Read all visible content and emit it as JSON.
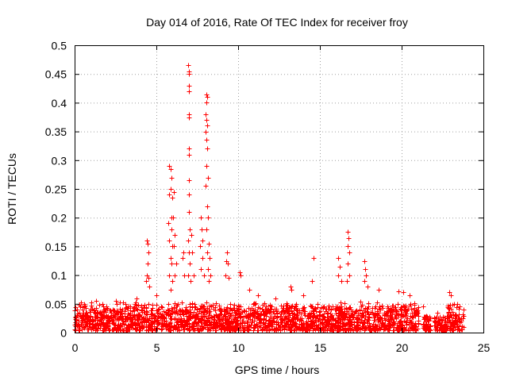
{
  "chart_data": {
    "type": "scatter",
    "title": "Day 014 of 2016, Rate Of TEC Index for receiver froy",
    "xlabel": "GPS time / hours",
    "ylabel": "ROTI / TECUs",
    "xlim": [
      0,
      25
    ],
    "ylim": [
      0,
      0.5
    ],
    "xticks": [
      "0",
      "5",
      "10",
      "15",
      "20",
      "25"
    ],
    "yticks": [
      "0",
      "0.05",
      "0.1",
      "0.15",
      "0.2",
      "0.25",
      "0.3",
      "0.35",
      "0.4",
      "0.45",
      "0.5"
    ],
    "grid": true,
    "marker": "+",
    "color": "#ff0000",
    "series": [
      {
        "points": [
          [
            0.3,
            0.048
          ],
          [
            0.6,
            0.05
          ],
          [
            1.0,
            0.052
          ],
          [
            1.3,
            0.055
          ],
          [
            1.7,
            0.05
          ],
          [
            2.5,
            0.055
          ],
          [
            3.1,
            0.05
          ],
          [
            3.8,
            0.06
          ],
          [
            4.4,
            0.16
          ],
          [
            4.45,
            0.155
          ],
          [
            4.5,
            0.14
          ],
          [
            4.45,
            0.12
          ],
          [
            4.4,
            0.1
          ],
          [
            4.5,
            0.095
          ],
          [
            4.35,
            0.09
          ],
          [
            4.55,
            0.08
          ],
          [
            5.0,
            0.065
          ],
          [
            5.8,
            0.29
          ],
          [
            5.85,
            0.285
          ],
          [
            5.9,
            0.27
          ],
          [
            5.85,
            0.25
          ],
          [
            5.8,
            0.24
          ],
          [
            5.95,
            0.235
          ],
          [
            5.9,
            0.2
          ],
          [
            5.75,
            0.19
          ],
          [
            5.9,
            0.18
          ],
          [
            5.8,
            0.16
          ],
          [
            5.95,
            0.15
          ],
          [
            5.85,
            0.13
          ],
          [
            5.9,
            0.12
          ],
          [
            5.8,
            0.1
          ],
          [
            5.95,
            0.09
          ],
          [
            5.85,
            0.075
          ],
          [
            6.05,
            0.245
          ],
          [
            6.0,
            0.2
          ],
          [
            6.1,
            0.17
          ],
          [
            6.05,
            0.15
          ],
          [
            6.2,
            0.12
          ],
          [
            6.1,
            0.1
          ],
          [
            6.6,
            0.13
          ],
          [
            6.65,
            0.14
          ],
          [
            6.7,
            0.1
          ],
          [
            6.95,
            0.465
          ],
          [
            7.0,
            0.455
          ],
          [
            6.98,
            0.45
          ],
          [
            7.0,
            0.43
          ],
          [
            6.97,
            0.42
          ],
          [
            7.0,
            0.38
          ],
          [
            6.98,
            0.375
          ],
          [
            6.97,
            0.32
          ],
          [
            7.0,
            0.31
          ],
          [
            7.0,
            0.265
          ],
          [
            6.98,
            0.24
          ],
          [
            6.97,
            0.21
          ],
          [
            7.02,
            0.18
          ],
          [
            6.95,
            0.16
          ],
          [
            7.0,
            0.14
          ],
          [
            7.05,
            0.12
          ],
          [
            6.95,
            0.1
          ],
          [
            7.1,
            0.09
          ],
          [
            7.2,
            0.14
          ],
          [
            7.15,
            0.17
          ],
          [
            7.3,
            0.1
          ],
          [
            7.7,
            0.2
          ],
          [
            7.75,
            0.18
          ],
          [
            7.8,
            0.16
          ],
          [
            7.65,
            0.15
          ],
          [
            7.8,
            0.13
          ],
          [
            7.7,
            0.11
          ],
          [
            7.9,
            0.1
          ],
          [
            8.05,
            0.415
          ],
          [
            8.1,
            0.41
          ],
          [
            8.05,
            0.4
          ],
          [
            8.0,
            0.38
          ],
          [
            8.05,
            0.37
          ],
          [
            8.1,
            0.36
          ],
          [
            8.0,
            0.35
          ],
          [
            8.05,
            0.335
          ],
          [
            8.1,
            0.32
          ],
          [
            8.05,
            0.29
          ],
          [
            8.15,
            0.27
          ],
          [
            8.0,
            0.255
          ],
          [
            8.1,
            0.22
          ],
          [
            8.15,
            0.2
          ],
          [
            8.05,
            0.18
          ],
          [
            8.2,
            0.155
          ],
          [
            8.1,
            0.14
          ],
          [
            8.25,
            0.13
          ],
          [
            8.15,
            0.11
          ],
          [
            8.3,
            0.1
          ],
          [
            8.2,
            0.09
          ],
          [
            9.3,
            0.14
          ],
          [
            9.25,
            0.125
          ],
          [
            9.35,
            0.12
          ],
          [
            9.2,
            0.1
          ],
          [
            9.4,
            0.095
          ],
          [
            10.1,
            0.105
          ],
          [
            10.15,
            0.1
          ],
          [
            10.7,
            0.075
          ],
          [
            11.2,
            0.065
          ],
          [
            12.3,
            0.06
          ],
          [
            13.2,
            0.08
          ],
          [
            13.25,
            0.075
          ],
          [
            14.0,
            0.065
          ],
          [
            14.5,
            0.09
          ],
          [
            14.6,
            0.13
          ],
          [
            16.1,
            0.13
          ],
          [
            16.2,
            0.115
          ],
          [
            16.1,
            0.1
          ],
          [
            16.3,
            0.09
          ],
          [
            16.7,
            0.175
          ],
          [
            16.75,
            0.165
          ],
          [
            16.7,
            0.15
          ],
          [
            16.8,
            0.14
          ],
          [
            16.7,
            0.12
          ],
          [
            16.8,
            0.1
          ],
          [
            16.65,
            0.09
          ],
          [
            17.7,
            0.125
          ],
          [
            17.75,
            0.11
          ],
          [
            17.8,
            0.1
          ],
          [
            17.7,
            0.09
          ],
          [
            17.9,
            0.08
          ],
          [
            18.6,
            0.075
          ],
          [
            19.8,
            0.072
          ],
          [
            20.1,
            0.07
          ],
          [
            20.5,
            0.065
          ],
          [
            21.3,
            0.045
          ],
          [
            22.2,
            0.035
          ],
          [
            22.9,
            0.07
          ],
          [
            23.0,
            0.065
          ],
          [
            23.2,
            0.05
          ],
          [
            23.8,
            0.04
          ]
        ]
      }
    ]
  }
}
